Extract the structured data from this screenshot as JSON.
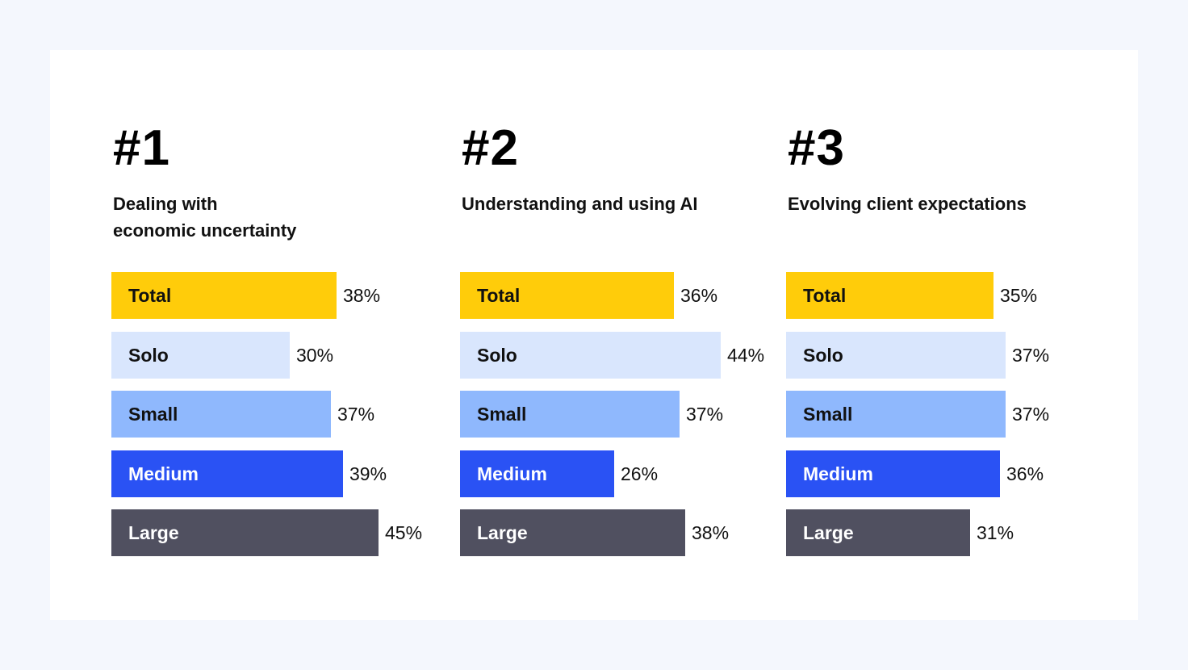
{
  "colors": {
    "Total": "#ffcc0a",
    "Solo": "#d9e6fd",
    "Small": "#8fb8fd",
    "Medium": "#2a52f4",
    "Large": "#505060"
  },
  "label_colors": {
    "Total": "#111111",
    "Solo": "#111111",
    "Small": "#111111",
    "Medium": "#ffffff",
    "Large": "#ffffff"
  },
  "chart_data": [
    {
      "type": "bar",
      "orientation": "horizontal",
      "rank": "#1",
      "title": "Dealing with\neconomic uncertainty",
      "categories": [
        "Total",
        "Solo",
        "Small",
        "Medium",
        "Large"
      ],
      "values": [
        38,
        30,
        37,
        39,
        45
      ],
      "value_labels": [
        "38%",
        "30%",
        "37%",
        "39%",
        "45%"
      ],
      "unit": "%"
    },
    {
      "type": "bar",
      "orientation": "horizontal",
      "rank": "#2",
      "title": "Understanding and using AI",
      "categories": [
        "Total",
        "Solo",
        "Small",
        "Medium",
        "Large"
      ],
      "values": [
        36,
        44,
        37,
        26,
        38
      ],
      "value_labels": [
        "36%",
        "44%",
        "37%",
        "26%",
        "38%"
      ],
      "unit": "%"
    },
    {
      "type": "bar",
      "orientation": "horizontal",
      "rank": "#3",
      "title": "Evolving client expectations",
      "categories": [
        "Total",
        "Solo",
        "Small",
        "Medium",
        "Large"
      ],
      "values": [
        35,
        37,
        37,
        36,
        31
      ],
      "value_labels": [
        "35%",
        "37%",
        "37%",
        "36%",
        "31%"
      ],
      "unit": "%"
    }
  ]
}
